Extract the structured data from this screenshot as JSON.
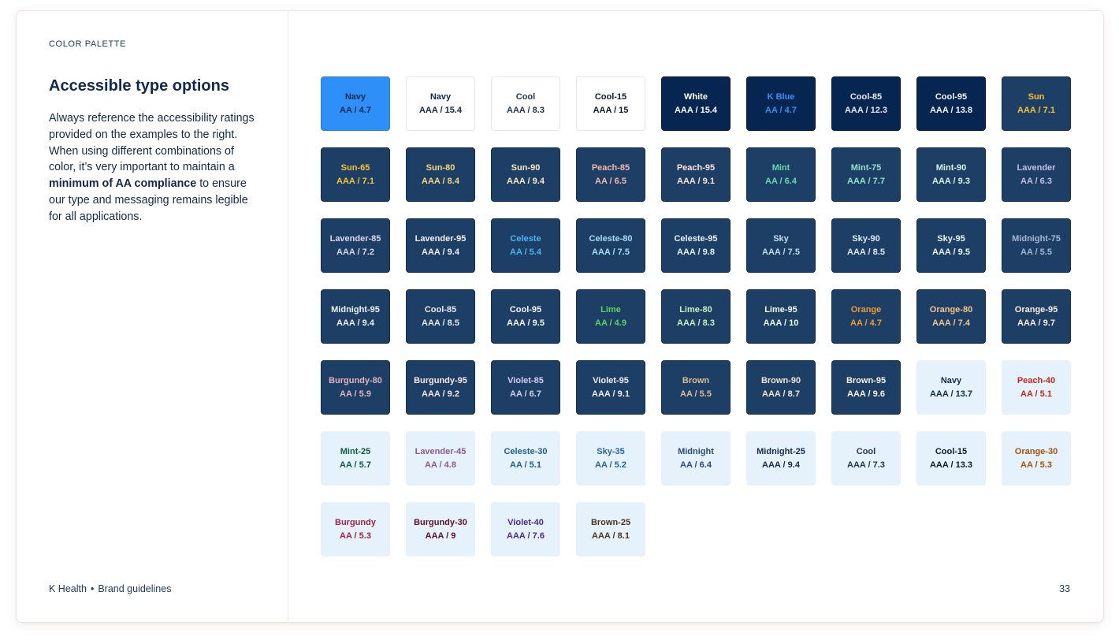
{
  "section_label": "COLOR PALETTE",
  "heading": "Accessible type options",
  "body": {
    "p1": "Always reference the accessibility ratings provided on the examples to the right. When using different combinations of color, it’s very important to maintain a ",
    "bold": "minimum of AA compliance",
    "p2": " to ensure our type and messaging remains legible for all applications."
  },
  "footer": {
    "brand": "K Health",
    "dot": "•",
    "doc": "Brand guidelines",
    "page": "33"
  },
  "swatches": [
    {
      "name": "Navy",
      "rating": "AA / 4.7",
      "surface": "bright",
      "color": "#0f2a4d"
    },
    {
      "name": "Navy",
      "rating": "AAA / 15.4",
      "surface": "white",
      "color": "#0f2a4d"
    },
    {
      "name": "Cool",
      "rating": "AAA / 8.3",
      "surface": "white",
      "color": "#1f3550"
    },
    {
      "name": "Cool-15",
      "rating": "AAA / 15",
      "surface": "white",
      "color": "#0b1a2e"
    },
    {
      "name": "White",
      "rating": "AAA / 15.4",
      "surface": "navy",
      "color": "#ffffff"
    },
    {
      "name": "K Blue",
      "rating": "AA / 4.7",
      "surface": "navy",
      "color": "#3a8ff5"
    },
    {
      "name": "Cool-85",
      "rating": "AAA / 12.3",
      "surface": "navy",
      "color": "#e7eaef"
    },
    {
      "name": "Cool-95",
      "rating": "AAA / 13.8",
      "surface": "navy",
      "color": "#f3f5f8"
    },
    {
      "name": "Sun",
      "rating": "AAA / 7.1",
      "surface": "mid",
      "color": "#f7c02f"
    },
    {
      "name": "Sun-65",
      "rating": "AAA / 7.1",
      "surface": "mid",
      "color": "#f7c32c"
    },
    {
      "name": "Sun-80",
      "rating": "AAA / 8.4",
      "surface": "mid",
      "color": "#f8d57b"
    },
    {
      "name": "Sun-90",
      "rating": "AAA / 9.4",
      "surface": "mid",
      "color": "#fbe9bd"
    },
    {
      "name": "Peach-85",
      "rating": "AA / 6.5",
      "surface": "mid",
      "color": "#f5b6a7"
    },
    {
      "name": "Peach-95",
      "rating": "AAA / 9.1",
      "surface": "mid",
      "color": "#fbe3dc"
    },
    {
      "name": "Mint",
      "rating": "AA / 6.4",
      "surface": "mid",
      "color": "#66d9b3"
    },
    {
      "name": "Mint-75",
      "rating": "AAA / 7.7",
      "surface": "mid",
      "color": "#8fe4c8"
    },
    {
      "name": "Mint-90",
      "rating": "AAA / 9.3",
      "surface": "mid",
      "color": "#d3f4e8"
    },
    {
      "name": "Lavender",
      "rating": "AA / 6.3",
      "surface": "mid",
      "color": "#c4bde4"
    },
    {
      "name": "Lavender-85",
      "rating": "AAA / 7.2",
      "surface": "mid",
      "color": "#ddd6ef"
    },
    {
      "name": "Lavender-95",
      "rating": "AAA / 9.4",
      "surface": "mid",
      "color": "#f1eef8"
    },
    {
      "name": "Celeste",
      "rating": "AA / 5.4",
      "surface": "mid",
      "color": "#49b5f2"
    },
    {
      "name": "Celeste-80",
      "rating": "AAA / 7.5",
      "surface": "mid",
      "color": "#a9dcf6"
    },
    {
      "name": "Celeste-95",
      "rating": "AAA / 9.8",
      "surface": "mid",
      "color": "#e3f3fc"
    },
    {
      "name": "Sky",
      "rating": "AAA / 7.5",
      "surface": "mid",
      "color": "#c3dcf0"
    },
    {
      "name": "Sky-90",
      "rating": "AAA / 8.5",
      "surface": "mid",
      "color": "#dcebf6"
    },
    {
      "name": "Sky-95",
      "rating": "AAA / 9.5",
      "surface": "mid",
      "color": "#eef5fb"
    },
    {
      "name": "Midnight-75",
      "rating": "AA / 5.5",
      "surface": "mid",
      "color": "#a5b8d2"
    },
    {
      "name": "Midnight-95",
      "rating": "AAA / 9.4",
      "surface": "mid",
      "color": "#eef1f6"
    },
    {
      "name": "Cool-85",
      "rating": "AAA / 8.5",
      "surface": "mid",
      "color": "#e6e9ee"
    },
    {
      "name": "Cool-95",
      "rating": "AAA / 9.5",
      "surface": "mid",
      "color": "#f4f6f8"
    },
    {
      "name": "Lime",
      "rating": "AA / 4.9",
      "surface": "mid",
      "color": "#5fd25c"
    },
    {
      "name": "Lime-80",
      "rating": "AAA / 8.3",
      "surface": "mid",
      "color": "#c6f0bd"
    },
    {
      "name": "Lime-95",
      "rating": "AAA / 10",
      "surface": "mid",
      "color": "#eefbea"
    },
    {
      "name": "Orange",
      "rating": "AA / 4.7",
      "surface": "mid",
      "color": "#f39a34"
    },
    {
      "name": "Orange-80",
      "rating": "AAA / 7.4",
      "surface": "mid",
      "color": "#f7c489"
    },
    {
      "name": "Orange-95",
      "rating": "AAA / 9.7",
      "surface": "mid",
      "color": "#fdeede"
    },
    {
      "name": "Burgundy-80",
      "rating": "AA / 5.9",
      "surface": "mid",
      "color": "#e7b1c3"
    },
    {
      "name": "Burgundy-95",
      "rating": "AAA / 9.2",
      "surface": "mid",
      "color": "#f8e6ec"
    },
    {
      "name": "Violet-85",
      "rating": "AA / 6.7",
      "surface": "mid",
      "color": "#d7cdf0"
    },
    {
      "name": "Violet-95",
      "rating": "AAA / 9.1",
      "surface": "mid",
      "color": "#f2eefb"
    },
    {
      "name": "Brown",
      "rating": "AA / 5.5",
      "surface": "mid",
      "color": "#dcbc93"
    },
    {
      "name": "Brown-90",
      "rating": "AAA / 8.7",
      "surface": "mid",
      "color": "#f2e6d6"
    },
    {
      "name": "Brown-95",
      "rating": "AAA / 9.6",
      "surface": "mid",
      "color": "#faf3ea"
    },
    {
      "name": "Navy",
      "rating": "AAA / 13.7",
      "surface": "light",
      "color": "#0f2a4d"
    },
    {
      "name": "Peach-40",
      "rating": "AA / 5.1",
      "surface": "light",
      "color": "#c1271c"
    },
    {
      "name": "Mint-25",
      "rating": "AA / 5.7",
      "surface": "light",
      "color": "#0d5a3e"
    },
    {
      "name": "Lavender-45",
      "rating": "AA / 4.8",
      "surface": "light",
      "color": "#8a5a8a"
    },
    {
      "name": "Celeste-30",
      "rating": "AA / 5.1",
      "surface": "light",
      "color": "#1e5f84"
    },
    {
      "name": "Sky-35",
      "rating": "AA / 5.2",
      "surface": "light",
      "color": "#22669c"
    },
    {
      "name": "Midnight",
      "rating": "AA / 6.4",
      "surface": "light",
      "color": "#2d4a78"
    },
    {
      "name": "Midnight-25",
      "rating": "AAA / 9.4",
      "surface": "light",
      "color": "#17294c"
    },
    {
      "name": "Cool",
      "rating": "AAA / 7.3",
      "surface": "light",
      "color": "#1f3550"
    },
    {
      "name": "Cool-15",
      "rating": "AAA / 13.3",
      "surface": "light",
      "color": "#0b1a2e"
    },
    {
      "name": "Orange-30",
      "rating": "AA / 5.3",
      "surface": "light",
      "color": "#a2520b"
    },
    {
      "name": "Burgundy",
      "rating": "AA / 5.3",
      "surface": "light",
      "color": "#9b2349"
    },
    {
      "name": "Burgundy-30",
      "rating": "AAA / 9",
      "surface": "light",
      "color": "#5e1029"
    },
    {
      "name": "Violet-40",
      "rating": "AAA / 7.6",
      "surface": "light",
      "color": "#4b2a8f"
    },
    {
      "name": "Brown-25",
      "rating": "AAA / 8.1",
      "surface": "light",
      "color": "#4e3418"
    }
  ]
}
